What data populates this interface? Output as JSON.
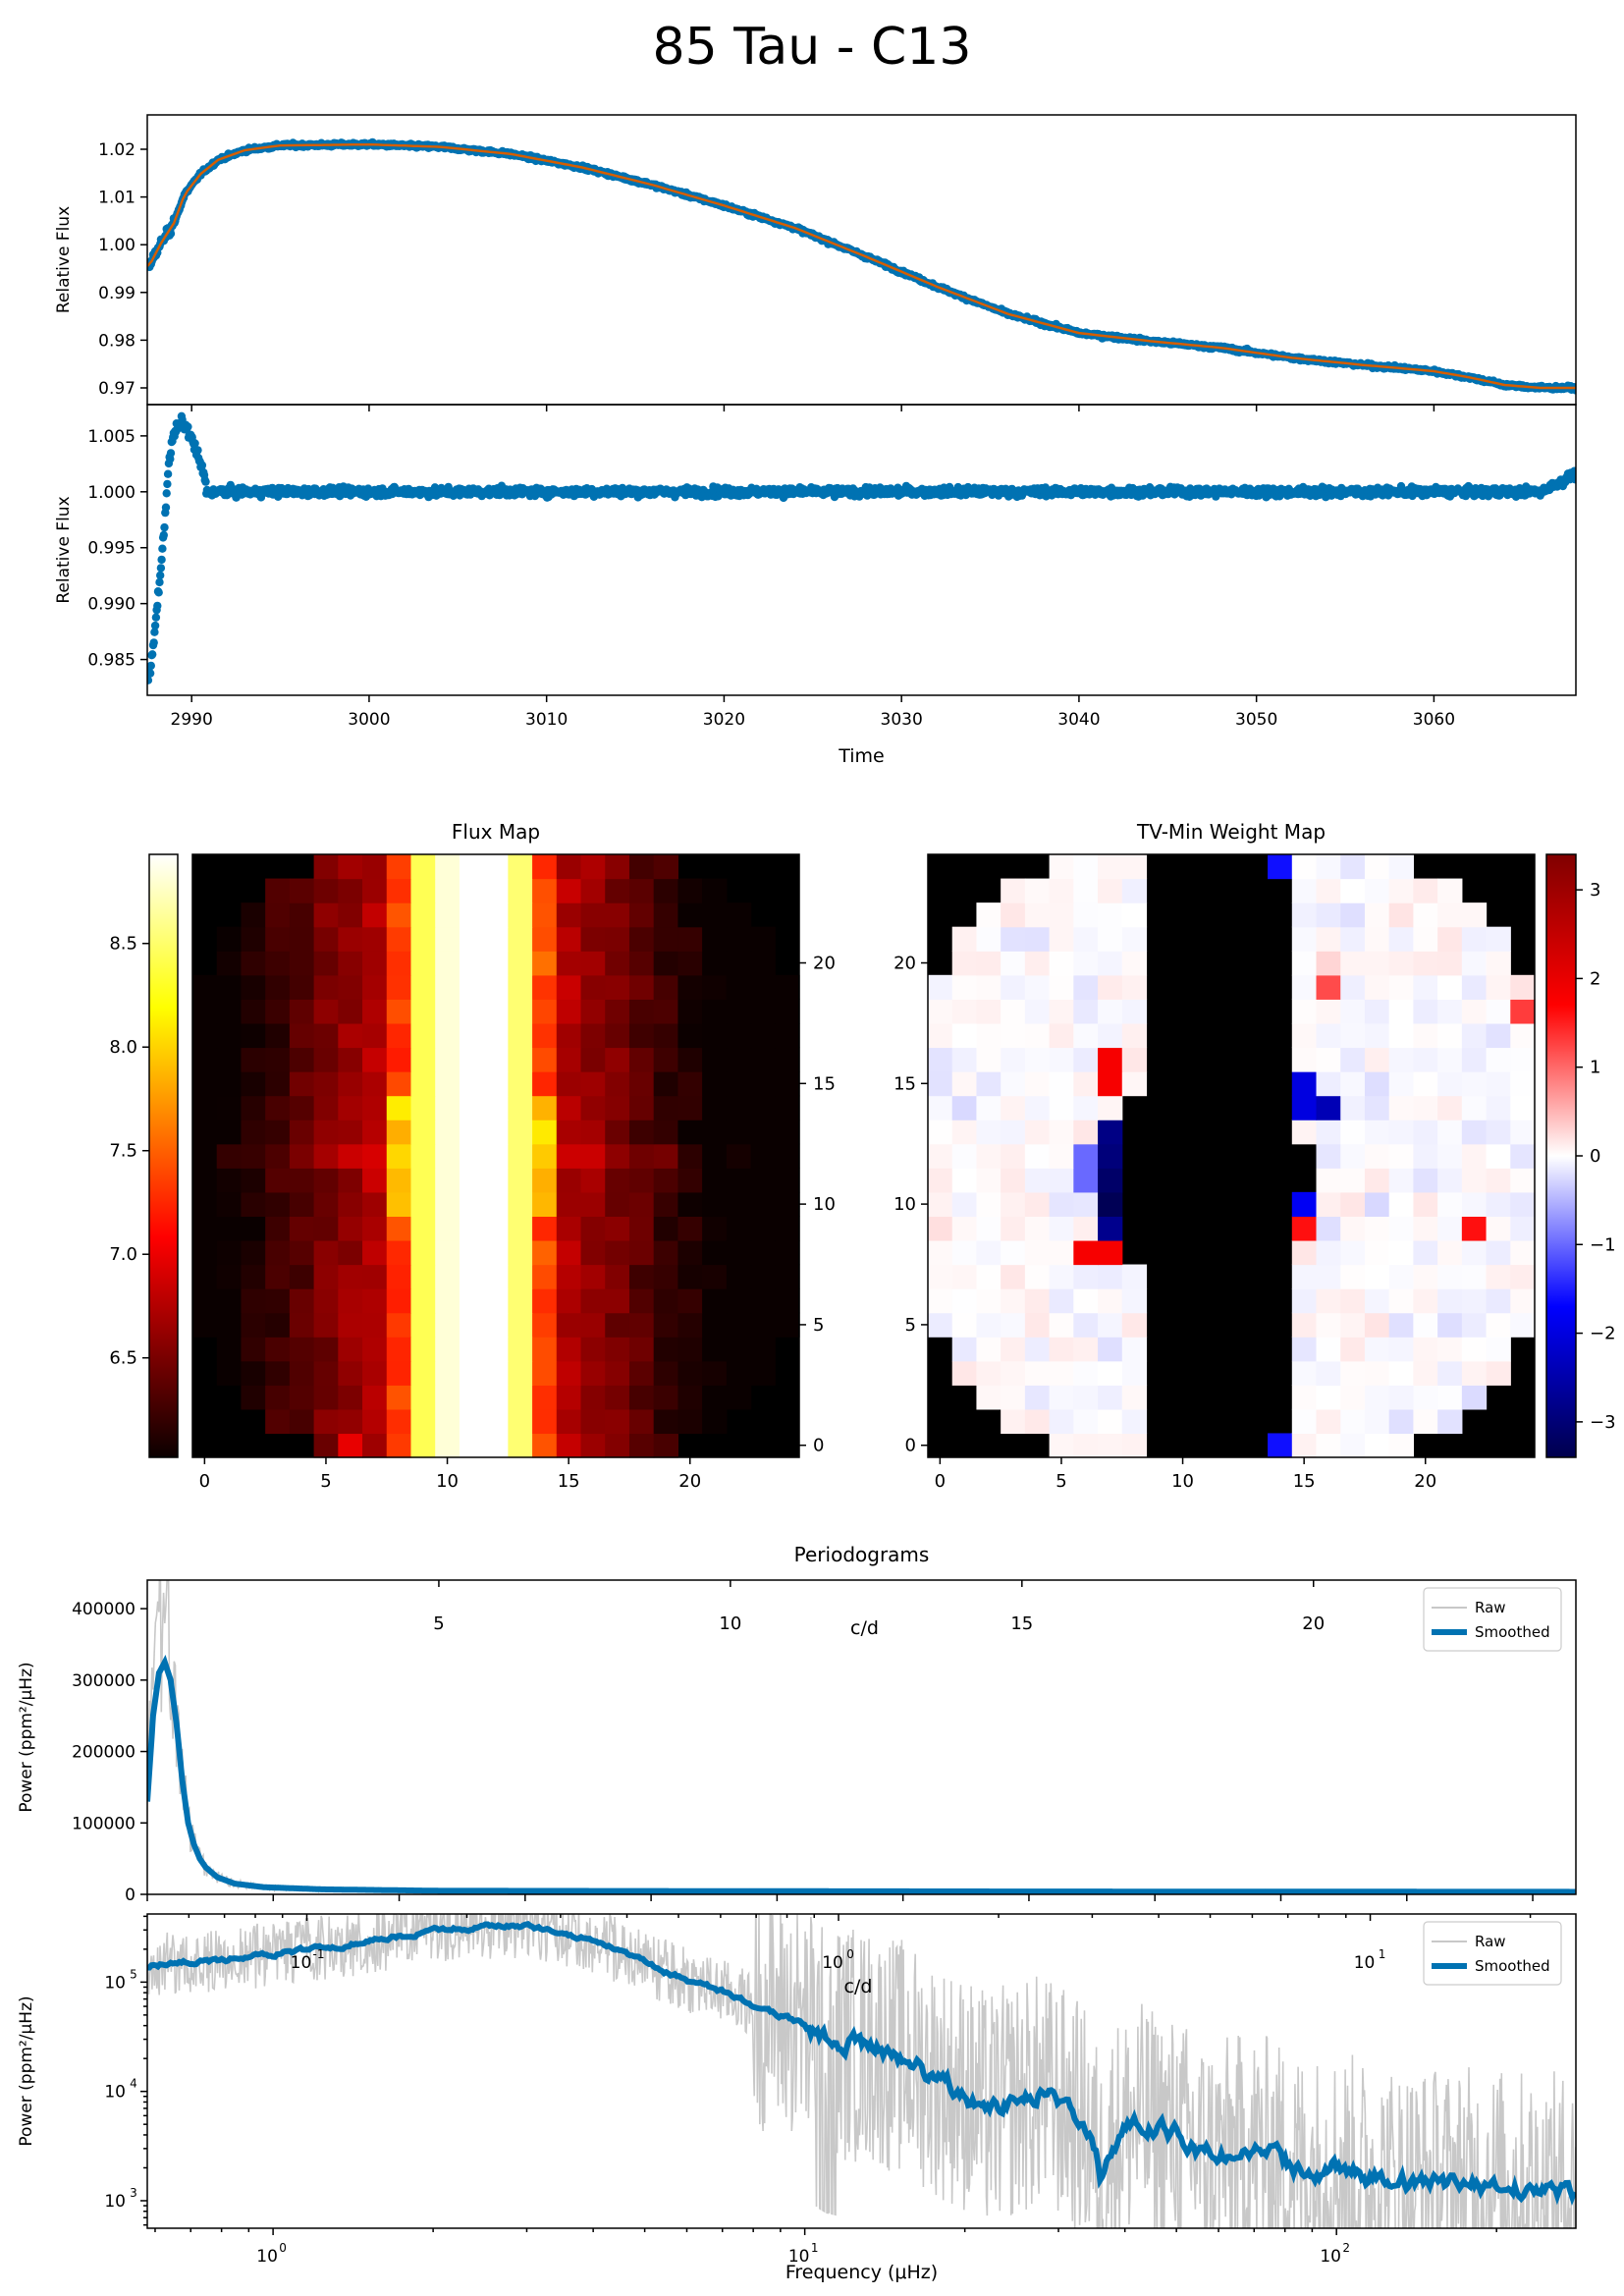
{
  "figure_title": "85 Tau - C13",
  "colors": {
    "data": "#0072b2",
    "model": "#d55e00",
    "raw": "#c8c8c8",
    "smoothed": "#0072b2",
    "masked": "#000000"
  },
  "chart_data": [
    {
      "id": "lc_raw",
      "type": "scatter",
      "title": "",
      "xlabel": "",
      "ylabel": "Relative Flux",
      "xlim": [
        2987.5,
        3068
      ],
      "ylim": [
        0.9665,
        1.0272
      ],
      "xticks": [
        2990,
        3000,
        3010,
        3020,
        3030,
        3040,
        3050,
        3060
      ],
      "xtick_labels_shown": false,
      "yticks": [
        0.97,
        0.98,
        0.99,
        1.0,
        1.01,
        1.02
      ],
      "ytick_labels": [
        "0.97",
        "0.98",
        "0.99",
        "1.00",
        "1.01",
        "1.02"
      ],
      "trend": {
        "x": [
          2987.6,
          2988.3,
          2989,
          2989.6,
          2990.5,
          2991.5,
          2993,
          2995,
          3000,
          3004,
          3008,
          3012,
          3016,
          3020,
          3024,
          3028,
          3032,
          3036,
          3040,
          3044,
          3048,
          3052,
          3056,
          3060,
          3062,
          3064,
          3066,
          3068
        ],
        "y": [
          0.9955,
          1.0005,
          1.0045,
          1.0105,
          1.0148,
          1.0178,
          1.0198,
          1.0208,
          1.021,
          1.0205,
          1.019,
          1.0162,
          1.0125,
          1.0082,
          1.0035,
          0.9975,
          0.9912,
          0.9855,
          0.9815,
          0.9798,
          0.9784,
          0.9763,
          0.9748,
          0.9735,
          0.9722,
          0.9706,
          0.97,
          0.97
        ]
      },
      "series": [
        {
          "name": "",
          "style": "scatter",
          "color": "#0072b2"
        },
        {
          "name": "",
          "style": "line",
          "color": "#d55e00"
        }
      ]
    },
    {
      "id": "lc_detrended",
      "type": "scatter",
      "title": "",
      "xlabel": "Time",
      "ylabel": "Relative Flux",
      "xlim": [
        2987.5,
        3068
      ],
      "ylim": [
        0.9818,
        1.0078
      ],
      "xticks": [
        2990,
        3000,
        3010,
        3020,
        3030,
        3040,
        3050,
        3060
      ],
      "xtick_labels": [
        "2990",
        "3000",
        "3010",
        "3020",
        "3030",
        "3040",
        "3050",
        "3060"
      ],
      "yticks": [
        0.985,
        0.99,
        0.995,
        1.0,
        1.005
      ],
      "ytick_labels": [
        "0.985",
        "0.990",
        "0.995",
        "1.000",
        "1.005"
      ],
      "ramp": {
        "x": [
          2987.5,
          2987.8,
          2988.1,
          2988.4,
          2988.7,
          2989.0,
          2989.4,
          2989.8,
          2990.3,
          2990.8
        ],
        "y": [
          0.9825,
          0.9855,
          0.9905,
          0.9955,
          1.0025,
          1.0052,
          1.0062,
          1.0055,
          1.0035,
          1.0008
        ]
      },
      "series": [
        {
          "name": "",
          "style": "scatter",
          "color": "#0072b2"
        }
      ]
    },
    {
      "id": "flux_map",
      "type": "heatmap",
      "title": "Flux Map",
      "colormap": "hot",
      "grid_size": [
        25,
        25
      ],
      "xticks": [
        0,
        5,
        10,
        15,
        20
      ],
      "xtick_labels": [
        "0",
        "5",
        "10",
        "15",
        "20"
      ],
      "yticks": [
        0,
        5,
        10,
        15,
        20
      ],
      "ytick_labels": [
        "0",
        "5",
        "10",
        "15",
        "20"
      ],
      "colorbar": {
        "position": "left",
        "range": [
          6.02,
          8.93
        ],
        "ticks": [
          6.5,
          7.0,
          7.5,
          8.0,
          8.5
        ],
        "tick_labels": [
          "6.5",
          "7.0",
          "7.5",
          "8.0",
          "8.5"
        ]
      }
    },
    {
      "id": "weight_map",
      "type": "heatmap",
      "title": "TV-Min Weight Map",
      "colormap": "seismic",
      "grid_size": [
        25,
        25
      ],
      "xticks": [
        0,
        5,
        10,
        15,
        20
      ],
      "xtick_labels": [
        "0",
        "5",
        "10",
        "15",
        "20"
      ],
      "yticks": [
        0,
        5,
        10,
        15,
        20
      ],
      "ytick_labels": [
        "0",
        "5",
        "10",
        "15",
        "20"
      ],
      "colorbar": {
        "position": "right",
        "range": [
          -3.4,
          3.4
        ],
        "ticks": [
          -3,
          -2,
          -1,
          0,
          1,
          2,
          3
        ],
        "tick_labels": [
          "−3",
          "−2",
          "−1",
          "0",
          "1",
          "2",
          "3"
        ]
      }
    },
    {
      "id": "periodogram_linear",
      "type": "line",
      "title": "Periodograms",
      "xlabel": "",
      "ylabel": "Power (ppm²/μHz)",
      "ylim": [
        0,
        440000
      ],
      "xlim_cd": [
        0,
        24.5
      ],
      "yticks": [
        0,
        100000,
        200000,
        300000,
        400000
      ],
      "ytick_labels": [
        "0",
        "100000",
        "200000",
        "300000",
        "400000"
      ],
      "top_axis_label": "c/d",
      "top_ticks": [
        5,
        10,
        15,
        20
      ],
      "top_tick_labels": [
        "5",
        "10",
        "15",
        "20"
      ],
      "smoothed": {
        "x": [
          0.0,
          0.1,
          0.2,
          0.3,
          0.4,
          0.5,
          0.6,
          0.7,
          0.8,
          0.9,
          1.0,
          1.2,
          1.5,
          2.0,
          3.0,
          5.0,
          10.0,
          15.0,
          24.5
        ],
        "y": [
          130000,
          250000,
          310000,
          325000,
          300000,
          240000,
          160000,
          100000,
          70000,
          50000,
          38000,
          24000,
          15000,
          10000,
          7000,
          5000,
          4500,
          4000,
          3500
        ]
      },
      "legend": {
        "position": "top-right",
        "entries": [
          "Raw",
          "Smoothed"
        ]
      }
    },
    {
      "id": "periodogram_log",
      "type": "line",
      "title": "",
      "xlabel": "Frequency (μHz)",
      "ylabel": "Power (ppm²/μHz)",
      "xscale": "log",
      "yscale": "log",
      "xlim": [
        0.58,
        282
      ],
      "ylim": [
        560,
        420000
      ],
      "xticks": [
        1,
        10,
        100
      ],
      "yticks": [
        1000,
        10000,
        100000
      ],
      "top_axis_label": "c/d",
      "top_ticks": [
        0.1,
        1,
        10
      ],
      "smoothed": {
        "x": [
          0.58,
          0.8,
          1.0,
          1.3,
          1.7,
          2.2,
          2.7,
          3.2,
          3.8,
          4.5,
          5.3,
          6.2,
          7.2,
          8.3,
          9.5,
          11,
          12.5,
          14,
          16,
          18,
          20,
          22,
          25,
          28,
          31,
          34,
          36,
          38,
          42,
          46,
          50,
          55,
          60,
          70,
          80,
          90,
          100,
          120,
          150,
          180,
          220,
          282
        ],
        "y": [
          140000,
          160000,
          180000,
          210000,
          260000,
          310000,
          330000,
          310000,
          260000,
          190000,
          130000,
          98000,
          78000,
          55000,
          45000,
          31000,
          27000,
          24000,
          18000,
          12500,
          9500,
          6500,
          8500,
          10000,
          7000,
          4500,
          1600,
          3500,
          5500,
          4500,
          4000,
          2800,
          2500,
          3000,
          2200,
          1800,
          2000,
          1500,
          1400,
          1400,
          1300,
          1200
        ]
      },
      "legend": {
        "position": "top-right",
        "entries": [
          "Raw",
          "Smoothed"
        ]
      }
    }
  ]
}
